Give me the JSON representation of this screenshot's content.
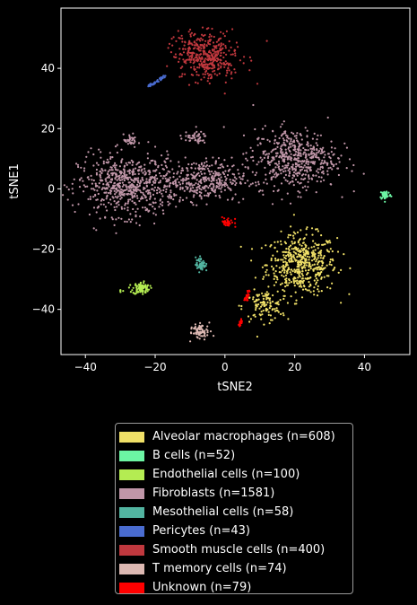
{
  "chart_data": {
    "type": "scatter",
    "xlabel": "tSNE2",
    "ylabel": "tSNE1",
    "xlim": [
      -47,
      53
    ],
    "ylim": [
      -55,
      60
    ],
    "xticks": [
      -40,
      -20,
      0,
      20,
      40
    ],
    "yticks": [
      -40,
      -20,
      0,
      20,
      40
    ],
    "xtick_labels": [
      "−40",
      "−20",
      "0",
      "20",
      "40"
    ],
    "ytick_labels": [
      "−40",
      "−20",
      "0",
      "20",
      "40"
    ],
    "legend_position": "below",
    "series": [
      {
        "name": "Alveolar macrophages (n=608)",
        "color": "#f0e068",
        "count": 608,
        "clusters": [
          {
            "x": 22,
            "y": -25,
            "sx": 5,
            "sy": 5,
            "w": 0.82
          },
          {
            "x": 11,
            "y": -39,
            "sx": 3,
            "sy": 2.5,
            "w": 0.18
          }
        ]
      },
      {
        "name": "B cells (n=52)",
        "color": "#6cf5a4",
        "count": 52,
        "clusters": [
          {
            "x": 46,
            "y": -2,
            "sx": 0.8,
            "sy": 0.8,
            "w": 1
          }
        ]
      },
      {
        "name": "Endothelial cells (n=100)",
        "color": "#b4ec52",
        "count": 100,
        "clusters": [
          {
            "x": -24,
            "y": -33,
            "sx": 1.2,
            "sy": 1.0,
            "w": 0.95
          },
          {
            "x": -30,
            "y": -34,
            "sx": 0.4,
            "sy": 0.3,
            "w": 0.05
          }
        ]
      },
      {
        "name": "Fibroblasts (n=1581)",
        "color": "#c096a8",
        "count": 1581,
        "clusters": [
          {
            "x": -28,
            "y": 1,
            "sx": 7,
            "sy": 5,
            "w": 0.4
          },
          {
            "x": -6,
            "y": 3,
            "sx": 6,
            "sy": 3.5,
            "w": 0.22
          },
          {
            "x": 20,
            "y": 10,
            "sx": 6,
            "sy": 5,
            "w": 0.33
          },
          {
            "x": -9,
            "y": 17,
            "sx": 2,
            "sy": 1,
            "w": 0.03
          },
          {
            "x": -27,
            "y": 16,
            "sx": 1,
            "sy": 1,
            "w": 0.02
          }
        ]
      },
      {
        "name": "Mesothelial cells (n=58)",
        "color": "#52b4a0",
        "count": 58,
        "clusters": [
          {
            "x": -7,
            "y": -25,
            "sx": 0.7,
            "sy": 1.2,
            "w": 1
          }
        ]
      },
      {
        "name": "Pericytes (n=43)",
        "color": "#4a6cd0",
        "count": 43,
        "clusters": [
          {
            "type": "segment",
            "x0": -22,
            "y0": 34,
            "x1": -17,
            "y1": 37.5,
            "w": 1
          }
        ]
      },
      {
        "name": "Smooth muscle cells (n=400)",
        "color": "#c0383e",
        "count": 400,
        "clusters": [
          {
            "x": -5,
            "y": 44,
            "sx": 4.5,
            "sy": 4,
            "w": 1
          }
        ]
      },
      {
        "name": "T memory cells (n=74)",
        "color": "#dcb8b2",
        "count": 74,
        "clusters": [
          {
            "x": -7,
            "y": -47,
            "sx": 1.3,
            "sy": 1.3,
            "w": 1
          }
        ]
      },
      {
        "name": "Unknown (n=79)",
        "color": "#ff0000",
        "count": 79,
        "clusters": [
          {
            "x": 1,
            "y": -11,
            "sx": 1.0,
            "sy": 0.7,
            "w": 0.5
          },
          {
            "type": "segment",
            "x0": 6,
            "y0": -37,
            "x1": 7,
            "y1": -34,
            "w": 0.25
          },
          {
            "type": "segment",
            "x0": 4,
            "y0": -46,
            "x1": 5,
            "y1": -43,
            "w": 0.25
          }
        ]
      }
    ]
  }
}
